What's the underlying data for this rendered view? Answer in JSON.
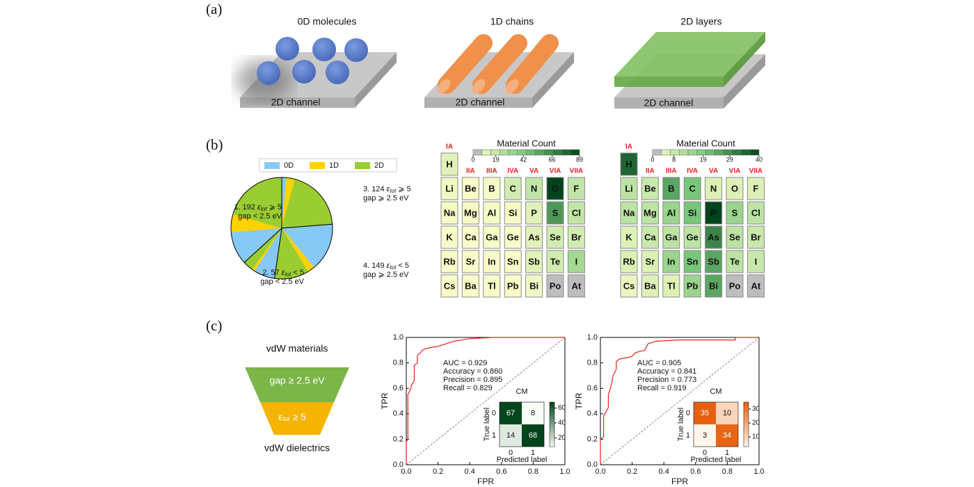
{
  "panel_a": {
    "label": "(a)",
    "items": [
      {
        "title": "0D molecules",
        "base": "2D channel"
      },
      {
        "title": "1D chains",
        "base": "2D channel"
      },
      {
        "title": "2D layers",
        "base": "2D channel"
      }
    ]
  },
  "panel_b": {
    "label": "(b)",
    "pie": {
      "type": "pie",
      "legend": [
        {
          "name": "0D",
          "color": "#87c9f5"
        },
        {
          "name": "1D",
          "color": "#ffd200"
        },
        {
          "name": "2D",
          "color": "#9acd32"
        }
      ],
      "groups": [
        {
          "index": "3.",
          "value": 124,
          "eps": "ε",
          "sub": "tot",
          "cond": "⩾ 5",
          "gap": "gap ⩾ 2.5 eV",
          "segments": [
            8,
            14,
            102
          ]
        },
        {
          "index": "4.",
          "value": 149,
          "eps": "ε",
          "sub": "tot",
          "cond": "< 5",
          "gap": "gap ⩾ 2.5 eV",
          "segments": [
            80,
            12,
            57
          ]
        },
        {
          "index": "2.",
          "value": 57,
          "eps": "ε",
          "sub": "tot",
          "cond": "< 5",
          "gap": "gap < 2.5 eV",
          "segments": [
            35,
            5,
            17
          ]
        },
        {
          "index": "1.",
          "value": 192,
          "eps": "ε",
          "sub": "tot",
          "cond": "⩾ 5",
          "gap": "gap < 2.5 eV",
          "segments": [
            55,
            30,
            107
          ]
        }
      ]
    },
    "tables": [
      {
        "type": "heatmap",
        "title": "Material Count",
        "ticks": [
          0,
          19,
          42,
          66,
          89
        ],
        "colors": [
          "#ffffcc",
          "#78c679",
          "#00441b"
        ],
        "zero_color": "#bdbdbd",
        "groups": [
          "IA",
          "IIA",
          "IIIA",
          "IVA",
          "VA",
          "VIA",
          "VIIA"
        ],
        "elements": [
          "H",
          "Li",
          "Be",
          "B",
          "C",
          "N",
          "O",
          "F",
          "Na",
          "Mg",
          "Al",
          "Si",
          "P",
          "S",
          "Cl",
          "K",
          "Ca",
          "Ga",
          "Ge",
          "As",
          "Se",
          "Br",
          "Rb",
          "Sr",
          "In",
          "Sn",
          "Sb",
          "Te",
          "I",
          "Cs",
          "Ba",
          "Tl",
          "Pb",
          "Bi",
          "Po",
          "At"
        ],
        "counts": [
          10,
          5,
          2,
          3,
          15,
          20,
          89,
          20,
          3,
          3,
          3,
          3,
          10,
          60,
          20,
          2,
          2,
          2,
          2,
          10,
          15,
          15,
          2,
          2,
          2,
          2,
          10,
          15,
          30,
          2,
          2,
          2,
          2,
          5,
          0,
          0
        ]
      },
      {
        "type": "heatmap",
        "title": "Material Count",
        "ticks": [
          0,
          8,
          19,
          29,
          40
        ],
        "colors": [
          "#ffffcc",
          "#78c679",
          "#00441b"
        ],
        "zero_color": "#bdbdbd",
        "groups": [
          "IA",
          "IIA",
          "IIIA",
          "IVA",
          "VA",
          "VIA",
          "VIIA"
        ],
        "elements": [
          "H",
          "Li",
          "Be",
          "B",
          "C",
          "N",
          "O",
          "F",
          "Na",
          "Mg",
          "Al",
          "Si",
          "P",
          "S",
          "Cl",
          "K",
          "Ca",
          "Ga",
          "Ge",
          "As",
          "Se",
          "Br",
          "Rb",
          "Sr",
          "In",
          "Sn",
          "Sb",
          "Te",
          "I",
          "Cs",
          "Ba",
          "Tl",
          "Pb",
          "Bi",
          "Po",
          "At"
        ],
        "counts": [
          35,
          10,
          8,
          25,
          20,
          5,
          5,
          5,
          10,
          10,
          15,
          20,
          40,
          15,
          10,
          5,
          8,
          10,
          10,
          30,
          10,
          8,
          5,
          5,
          15,
          20,
          25,
          10,
          8,
          3,
          5,
          5,
          15,
          25,
          0,
          0
        ]
      }
    ]
  },
  "panel_c": {
    "label": "(c)",
    "funnel": {
      "top": "vdW materials",
      "stage1": "gap ≥ 2.5 eV",
      "stage2": {
        "eps": "ε",
        "sub": "tot",
        "cond": "≥ 5"
      },
      "bottom": "vdW dielectrics"
    },
    "roc": [
      {
        "type": "line",
        "xlabel": "FPR",
        "ylabel": "TPR",
        "xlim": [
          0,
          1
        ],
        "ylim": [
          0,
          1
        ],
        "xticks": [
          {
            "value": 0,
            "label": "0.0"
          },
          {
            "value": 0.2,
            "label": "0.2"
          },
          {
            "value": 0.4,
            "label": "0.4"
          },
          {
            "value": 0.6,
            "label": "0.6"
          },
          {
            "value": 0.8,
            "label": "0.8"
          },
          {
            "value": 1,
            "label": "1.0"
          }
        ],
        "yticks": [
          {
            "value": 0,
            "label": "0.0"
          },
          {
            "value": 0.2,
            "label": "0.2"
          },
          {
            "value": 0.4,
            "label": "0.4"
          },
          {
            "value": 0.6,
            "label": "0.6"
          },
          {
            "value": 0.8,
            "label": "0.8"
          },
          {
            "value": 1,
            "label": "1.0"
          }
        ],
        "color": "#e8201c",
        "x": [
          0,
          0,
          0.01,
          0.01,
          0.03,
          0.03,
          0.05,
          0.05,
          0.07,
          0.07,
          0.09,
          0.1,
          0.12,
          0.15,
          0.2,
          0.25,
          0.3,
          0.35,
          0.4,
          0.55,
          1
        ],
        "y": [
          0,
          0.18,
          0.2,
          0.55,
          0.6,
          0.62,
          0.66,
          0.78,
          0.8,
          0.86,
          0.88,
          0.9,
          0.91,
          0.92,
          0.93,
          0.95,
          0.97,
          0.98,
          0.99,
          1,
          1
        ],
        "metrics": [
          "AUC = 0.929",
          "Accuracy = 0.860",
          "Precision = 0.895",
          "Recall = 0.829"
        ],
        "cm": {
          "title": "CM",
          "xlabel": "Predicted label",
          "ylabel": "True label",
          "classes": [
            0,
            1
          ],
          "matrix": [
            [
              67,
              8
            ],
            [
              14,
              68
            ]
          ],
          "cbar_ticks": [
            20,
            40,
            60
          ],
          "colors": [
            "#f7fcf5",
            "#00441b"
          ]
        }
      },
      {
        "type": "line",
        "xlabel": "FPR",
        "ylabel": "TPR",
        "xlim": [
          0,
          1
        ],
        "ylim": [
          0,
          1
        ],
        "xticks": [
          {
            "value": 0,
            "label": "0.0"
          },
          {
            "value": 0.2,
            "label": "0.2"
          },
          {
            "value": 0.4,
            "label": "0.4"
          },
          {
            "value": 0.6,
            "label": "0.6"
          },
          {
            "value": 0.8,
            "label": "0.8"
          },
          {
            "value": 1,
            "label": "1.0"
          }
        ],
        "yticks": [
          {
            "value": 0,
            "label": "0.0"
          },
          {
            "value": 0.2,
            "label": "0.2"
          },
          {
            "value": 0.4,
            "label": "0.4"
          },
          {
            "value": 0.6,
            "label": "0.6"
          },
          {
            "value": 0.8,
            "label": "0.8"
          },
          {
            "value": 1,
            "label": "1.0"
          }
        ],
        "color": "#e8201c",
        "x": [
          0,
          0,
          0.02,
          0.02,
          0.05,
          0.05,
          0.07,
          0.08,
          0.1,
          0.1,
          0.12,
          0.2,
          0.22,
          0.28,
          0.3,
          0.35,
          0.5,
          0.85,
          0.85,
          1
        ],
        "y": [
          0,
          0.2,
          0.22,
          0.38,
          0.45,
          0.55,
          0.63,
          0.7,
          0.75,
          0.81,
          0.83,
          0.85,
          0.88,
          0.9,
          0.95,
          0.97,
          0.98,
          0.98,
          1,
          1
        ],
        "metrics": [
          "AUC = 0.905",
          "Accuracy = 0.841",
          "Precision = 0.773",
          "Recall = 0.919"
        ],
        "cm": {
          "title": "CM",
          "xlabel": "Predicted label",
          "ylabel": "True label",
          "classes": [
            0,
            1
          ],
          "matrix": [
            [
              35,
              10
            ],
            [
              3,
              34
            ]
          ],
          "cbar_ticks": [
            10,
            20,
            30
          ],
          "colors": [
            "#fff5eb",
            "#e8600f"
          ]
        }
      }
    ]
  }
}
